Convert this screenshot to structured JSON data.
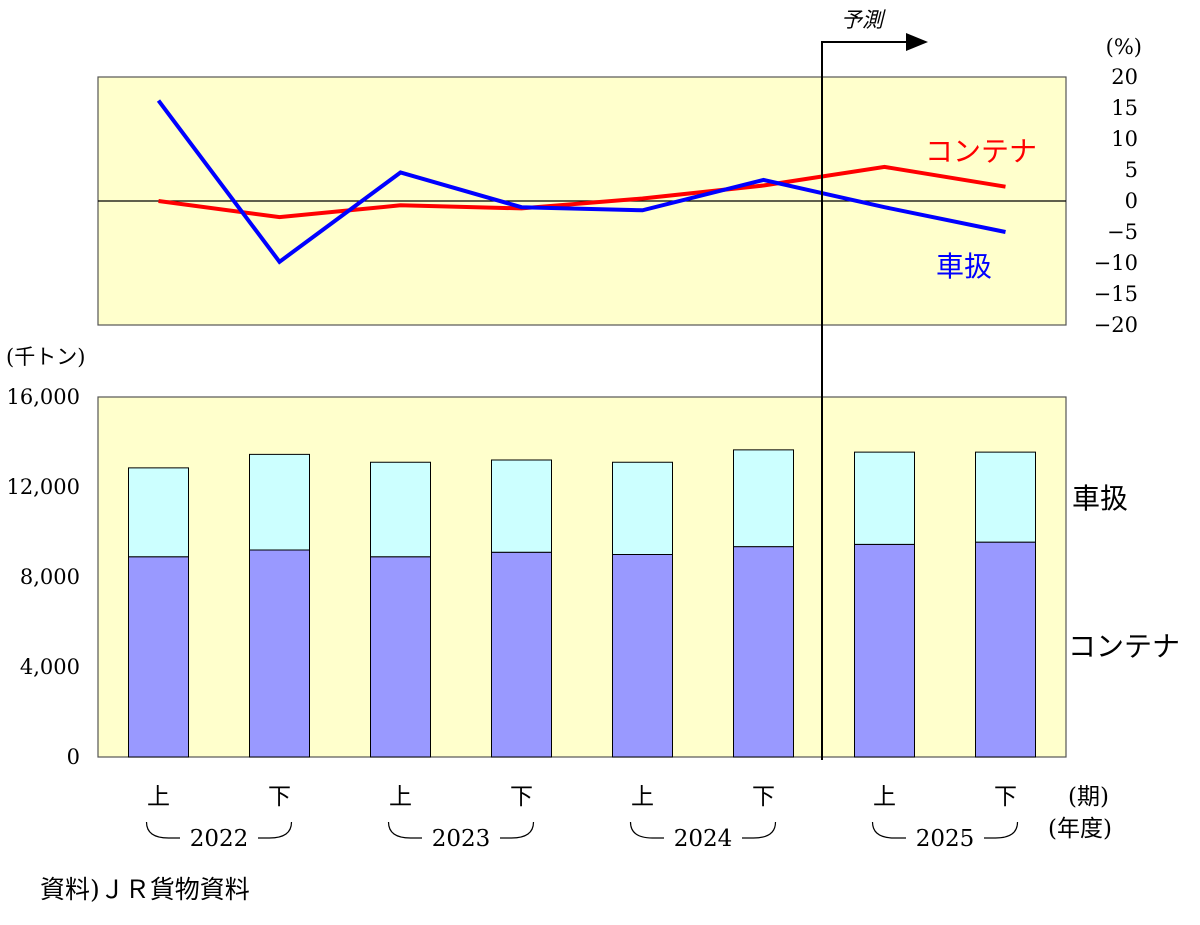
{
  "chart_data": [
    {
      "type": "line",
      "title": "",
      "y_unit": "(%)",
      "ylim": [
        -20,
        20
      ],
      "y_ticks": [
        "20",
        "15",
        "10",
        "5",
        "0",
        "−5",
        "−10",
        "−15",
        "−20"
      ],
      "zero_line": true,
      "categories": [
        "2022上",
        "2022下",
        "2023上",
        "2023下",
        "2024上",
        "2024下",
        "2025上",
        "2025下"
      ],
      "series": [
        {
          "name": "コンテナ",
          "color": "#ff0000",
          "values": [
            0,
            -2.6,
            -0.7,
            -1.2,
            0.4,
            2.5,
            5.5,
            2.3
          ]
        },
        {
          "name": "車扱",
          "color": "#0000ff",
          "values": [
            16.2,
            -9.8,
            4.6,
            -1.0,
            -1.5,
            3.4,
            -1.0,
            -5.0
          ]
        }
      ],
      "forecast_label": "予測",
      "forecast_from_index": 6
    },
    {
      "type": "bar",
      "stacked": true,
      "y_unit": "(千トン)",
      "ylim": [
        0,
        16000
      ],
      "y_ticks": [
        "16,000",
        "12,000",
        "8,000",
        "4,000",
        "0"
      ],
      "categories": [
        "上",
        "下",
        "上",
        "下",
        "上",
        "下",
        "上",
        "下"
      ],
      "series": [
        {
          "name": "コンテナ",
          "color": "#9999ff",
          "values": [
            8900,
            9200,
            8900,
            9100,
            9000,
            9350,
            9450,
            9550
          ]
        },
        {
          "name": "車扱",
          "color": "#ccffff",
          "values": [
            3950,
            4250,
            4200,
            4100,
            4100,
            4300,
            4100,
            4000
          ]
        }
      ],
      "period_label": "(期)",
      "year_label": "(年度)",
      "years": [
        "2022",
        "2023",
        "2024",
        "2025"
      ]
    }
  ],
  "plot_bg": "#ffffcc",
  "source": "資料)ＪＲ貨物資料"
}
